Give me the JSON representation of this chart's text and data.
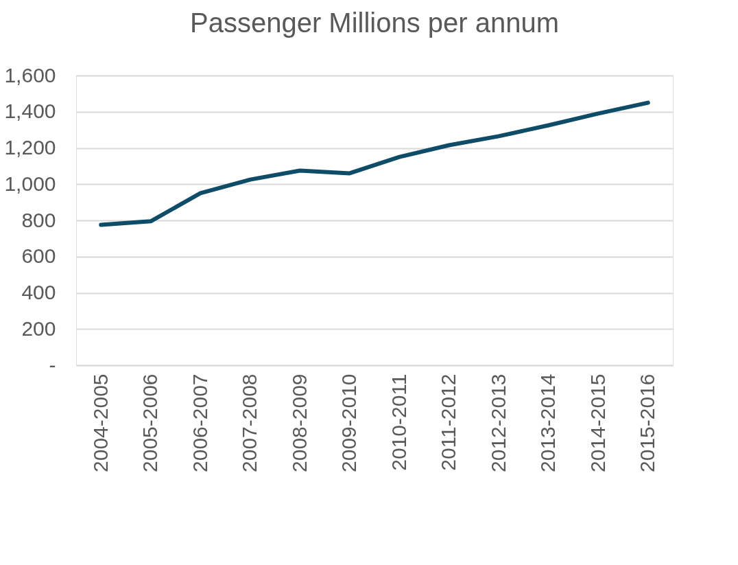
{
  "chart_data": {
    "type": "line",
    "title": "Passenger Millions per annum",
    "categories": [
      "2004-2005",
      "2005-2006",
      "2006-2007",
      "2007-2008",
      "2008-2009",
      "2009-2010",
      "2010-2011",
      "2011-2012",
      "2012-2013",
      "2013-2014",
      "2014-2015",
      "2015-2016"
    ],
    "series": [
      {
        "color": "#0f4c68",
        "values": [
          775,
          795,
          950,
          1025,
          1075,
          1060,
          1150,
          1215,
          1265,
          1325,
          1390,
          1450
        ]
      }
    ],
    "ylim": [
      0,
      1600
    ],
    "yticks": [
      {
        "value": 0,
        "label": "-"
      },
      {
        "value": 200,
        "label": "200"
      },
      {
        "value": 400,
        "label": "400"
      },
      {
        "value": 600,
        "label": "600"
      },
      {
        "value": 800,
        "label": "800"
      },
      {
        "value": 1000,
        "label": "1,000"
      },
      {
        "value": 1200,
        "label": "1,200"
      },
      {
        "value": 1400,
        "label": "1,400"
      },
      {
        "value": 1600,
        "label": "1,600"
      }
    ],
    "grid": "y",
    "marker": "none",
    "line_style": "solid"
  }
}
